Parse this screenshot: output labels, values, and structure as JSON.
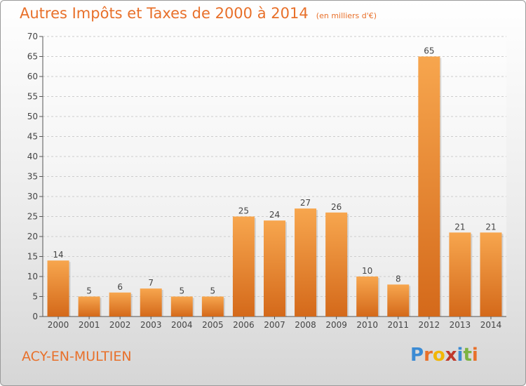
{
  "chart_data": {
    "type": "bar",
    "title": "Autres Impôts et Taxes de 2000 à 2014",
    "subtitle": "(en milliers d'€)",
    "categories": [
      "2000",
      "2001",
      "2002",
      "2003",
      "2004",
      "2005",
      "2006",
      "2007",
      "2008",
      "2009",
      "2010",
      "2011",
      "2012",
      "2013",
      "2014"
    ],
    "values": [
      14,
      5,
      6,
      7,
      5,
      5,
      25,
      24,
      27,
      26,
      10,
      8,
      65,
      21,
      21
    ],
    "ylim": [
      0,
      70
    ],
    "yticks": [
      0,
      5,
      10,
      15,
      20,
      25,
      30,
      35,
      40,
      45,
      50,
      55,
      60,
      65,
      70
    ],
    "grid": true,
    "xlabel": "",
    "ylabel": "",
    "bar_color_light": "#f7a64e",
    "bar_color_dark": "#d4691a"
  },
  "footer": {
    "commune": "ACY-EN-MULTIEN",
    "logo_letters": [
      "P",
      "r",
      "o",
      "x",
      "i",
      "t",
      "i"
    ],
    "logo_colors": [
      "#3b8bd4",
      "#e8702a",
      "#f2b705",
      "#c0392b",
      "#3b8bd4",
      "#7cb342",
      "#e8702a"
    ]
  },
  "colors": {
    "title": "#e8702a",
    "grid": "#cccccc",
    "axis": "#555555"
  }
}
